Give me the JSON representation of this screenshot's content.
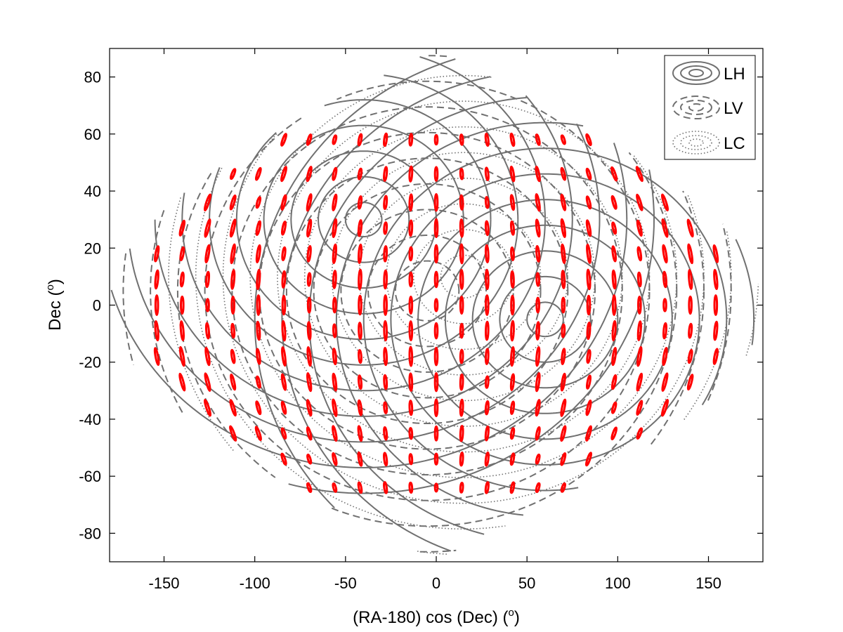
{
  "chart_data": {
    "type": "line",
    "title": "",
    "xlabel": "(RA-180) cos (Dec) (",
    "xlabel_sup": "o",
    "xlabel_tail": ")",
    "ylabel": "Dec (",
    "ylabel_sup": "o",
    "ylabel_tail": ")",
    "xlim": [
      -180,
      180
    ],
    "ylim": [
      -90,
      90
    ],
    "x_ticks": [
      -150,
      -100,
      -50,
      0,
      50,
      100,
      150
    ],
    "y_ticks": [
      -80,
      -60,
      -40,
      -20,
      0,
      20,
      40,
      60,
      80
    ],
    "grid": false,
    "legend_position": "top-right",
    "line_color": "#707070",
    "marker_color": "#ff0000",
    "legend": [
      {
        "label": "LH",
        "style": "solid"
      },
      {
        "label": "LV",
        "style": "dashed"
      },
      {
        "label": "LC",
        "style": "dotted"
      }
    ],
    "series": [
      {
        "style": "solid",
        "center": [
          -40,
          30
        ],
        "radii": [
          8,
          20,
          32,
          44,
          56,
          68,
          80,
          92,
          104,
          116,
          128
        ]
      },
      {
        "style": "solid",
        "center": [
          60,
          -5
        ],
        "radii": [
          8,
          20,
          32,
          44,
          56,
          68,
          80,
          92,
          104,
          116,
          128
        ]
      },
      {
        "style": "dashed",
        "center": [
          -5,
          5
        ],
        "radii": [
          14,
          26,
          38,
          50,
          62,
          74,
          86,
          98,
          110,
          122,
          134
        ]
      },
      {
        "style": "dotted",
        "center": [
          15,
          10
        ],
        "radii": [
          10,
          22,
          34,
          46,
          58,
          70,
          82,
          94,
          106,
          118,
          130
        ]
      }
    ],
    "markers": {
      "dec_rows": [
        58,
        46,
        36,
        27,
        18,
        9,
        0,
        -9,
        -18,
        -27,
        -36,
        -45,
        -54,
        -64
      ],
      "x_step": 14,
      "x_max": 163
    }
  }
}
